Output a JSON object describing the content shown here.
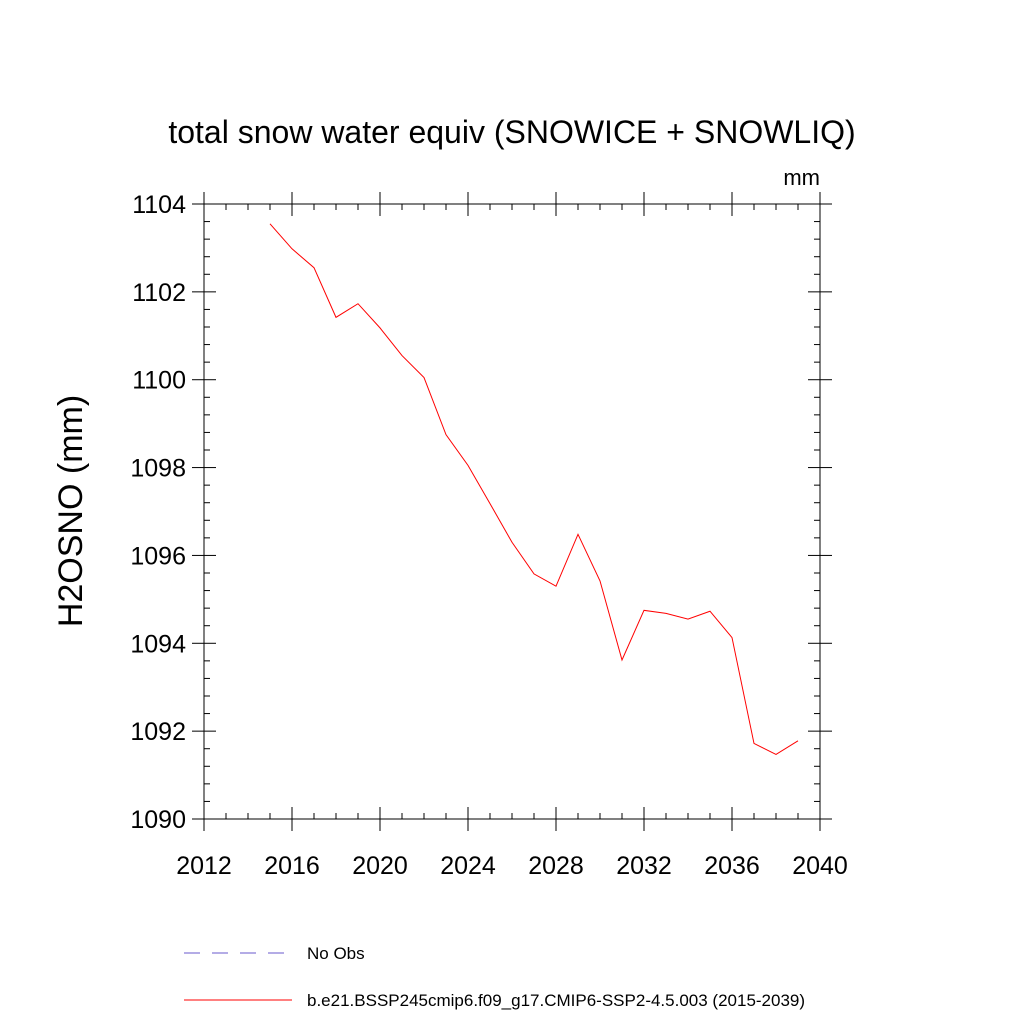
{
  "chart_data": {
    "type": "line",
    "title": "total snow water equiv (SNOWICE + SNOWLIQ)",
    "units": "mm",
    "ylabel": "H2OSNO  (mm)",
    "xlabel": "",
    "xlim": [
      2012,
      2040
    ],
    "ylim": [
      1090,
      1104
    ],
    "x_ticks": [
      2012,
      2016,
      2020,
      2024,
      2028,
      2032,
      2036,
      2040
    ],
    "y_ticks": [
      1090,
      1092,
      1094,
      1096,
      1098,
      1100,
      1102,
      1104
    ],
    "grid": false,
    "legend_position": "bottom",
    "series": [
      {
        "name": "b.e21.BSSP245cmip6.f09_g17.CMIP6-SSP2-4.5.003 (2015-2039)",
        "color": "#ff0000",
        "style": "solid",
        "x": [
          2015,
          2016,
          2017,
          2018,
          2019,
          2020,
          2021,
          2022,
          2023,
          2024,
          2025,
          2026,
          2027,
          2028,
          2029,
          2030,
          2031,
          2032,
          2033,
          2034,
          2035,
          2036,
          2037,
          2038,
          2039
        ],
        "values": [
          1103.55,
          1102.98,
          1102.55,
          1101.42,
          1101.73,
          1101.18,
          1100.55,
          1100.05,
          1098.75,
          1098.05,
          1097.18,
          1096.3,
          1095.58,
          1095.3,
          1096.48,
          1095.42,
          1093.62,
          1094.75,
          1094.68,
          1094.55,
          1094.73,
          1094.13,
          1091.72,
          1091.47,
          1091.78
        ]
      },
      {
        "name": "No Obs",
        "color": "#6a5acd",
        "style": "dashed",
        "x": [],
        "values": []
      }
    ]
  }
}
